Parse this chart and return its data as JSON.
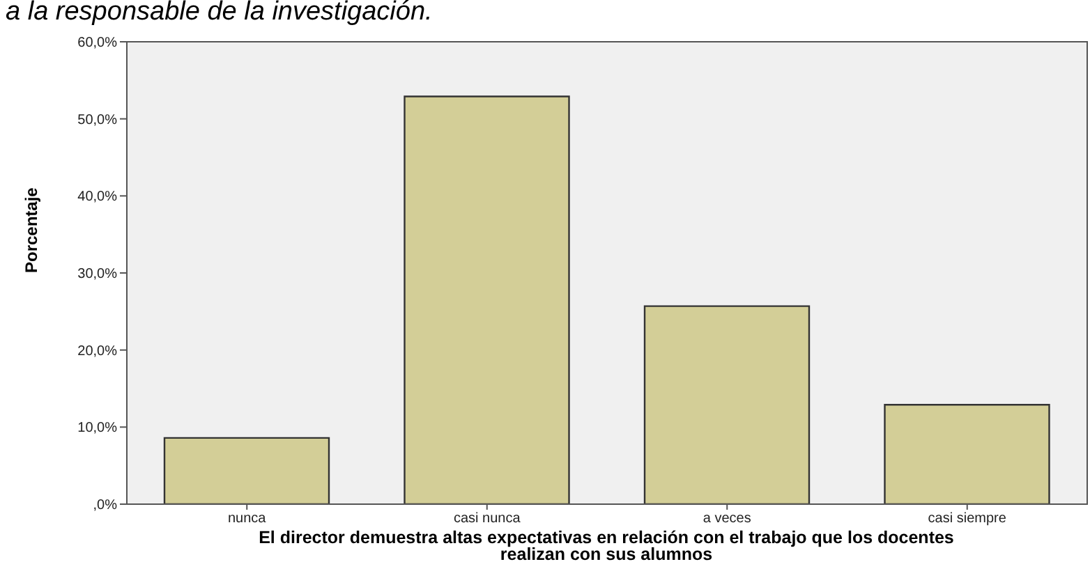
{
  "chart_data": {
    "type": "bar",
    "ylabel": "Porcentaje",
    "xlabel": "El director demuestra altas expectativas en relación con el trabajo que los docentes realizan con sus alumnos",
    "annotations": [
      "a la responsable de la investigación."
    ],
    "categories": [
      "nunca",
      "casi nunca",
      "a veces",
      "casi siempre"
    ],
    "values": [
      8.6,
      52.9,
      25.7,
      12.9
    ],
    "color": "#d3ce97",
    "ylim": [
      0,
      60
    ],
    "yticks": [
      {
        "value": 0,
        "label": ",0%"
      },
      {
        "value": 10,
        "label": "10,0%"
      },
      {
        "value": 20,
        "label": "20,0%"
      },
      {
        "value": 30,
        "label": "30,0%"
      },
      {
        "value": 40,
        "label": "40,0%"
      },
      {
        "value": 50,
        "label": "50,0%"
      },
      {
        "value": 60,
        "label": "60,0%"
      }
    ]
  }
}
